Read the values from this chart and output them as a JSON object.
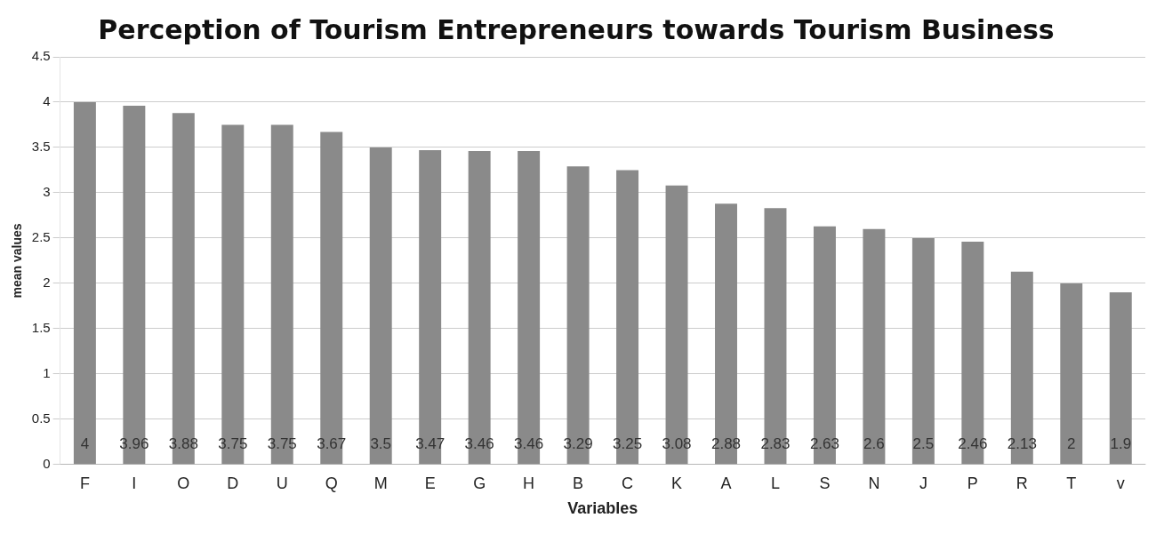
{
  "chart_data": {
    "type": "bar",
    "title": "Perception of Tourism Entrepreneurs towards Tourism Business",
    "xlabel": "Variables",
    "ylabel": "mean values",
    "categories": [
      "F",
      "I",
      "O",
      "D",
      "U",
      "Q",
      "M",
      "E",
      "G",
      "H",
      "B",
      "C",
      "K",
      "A",
      "L",
      "S",
      "N",
      "J",
      "P",
      "R",
      "T",
      "v"
    ],
    "values": [
      4,
      3.96,
      3.88,
      3.75,
      3.75,
      3.67,
      3.5,
      3.47,
      3.46,
      3.46,
      3.29,
      3.25,
      3.08,
      2.88,
      2.83,
      2.63,
      2.6,
      2.5,
      2.46,
      2.13,
      2,
      1.9
    ],
    "color": "#8a8a8a",
    "ylim": [
      0,
      4.5
    ],
    "yticks": [
      0,
      0.5,
      1,
      1.5,
      2,
      2.5,
      3,
      3.5,
      4,
      4.5
    ],
    "grid": "y",
    "data_labels": true,
    "legend": false
  }
}
